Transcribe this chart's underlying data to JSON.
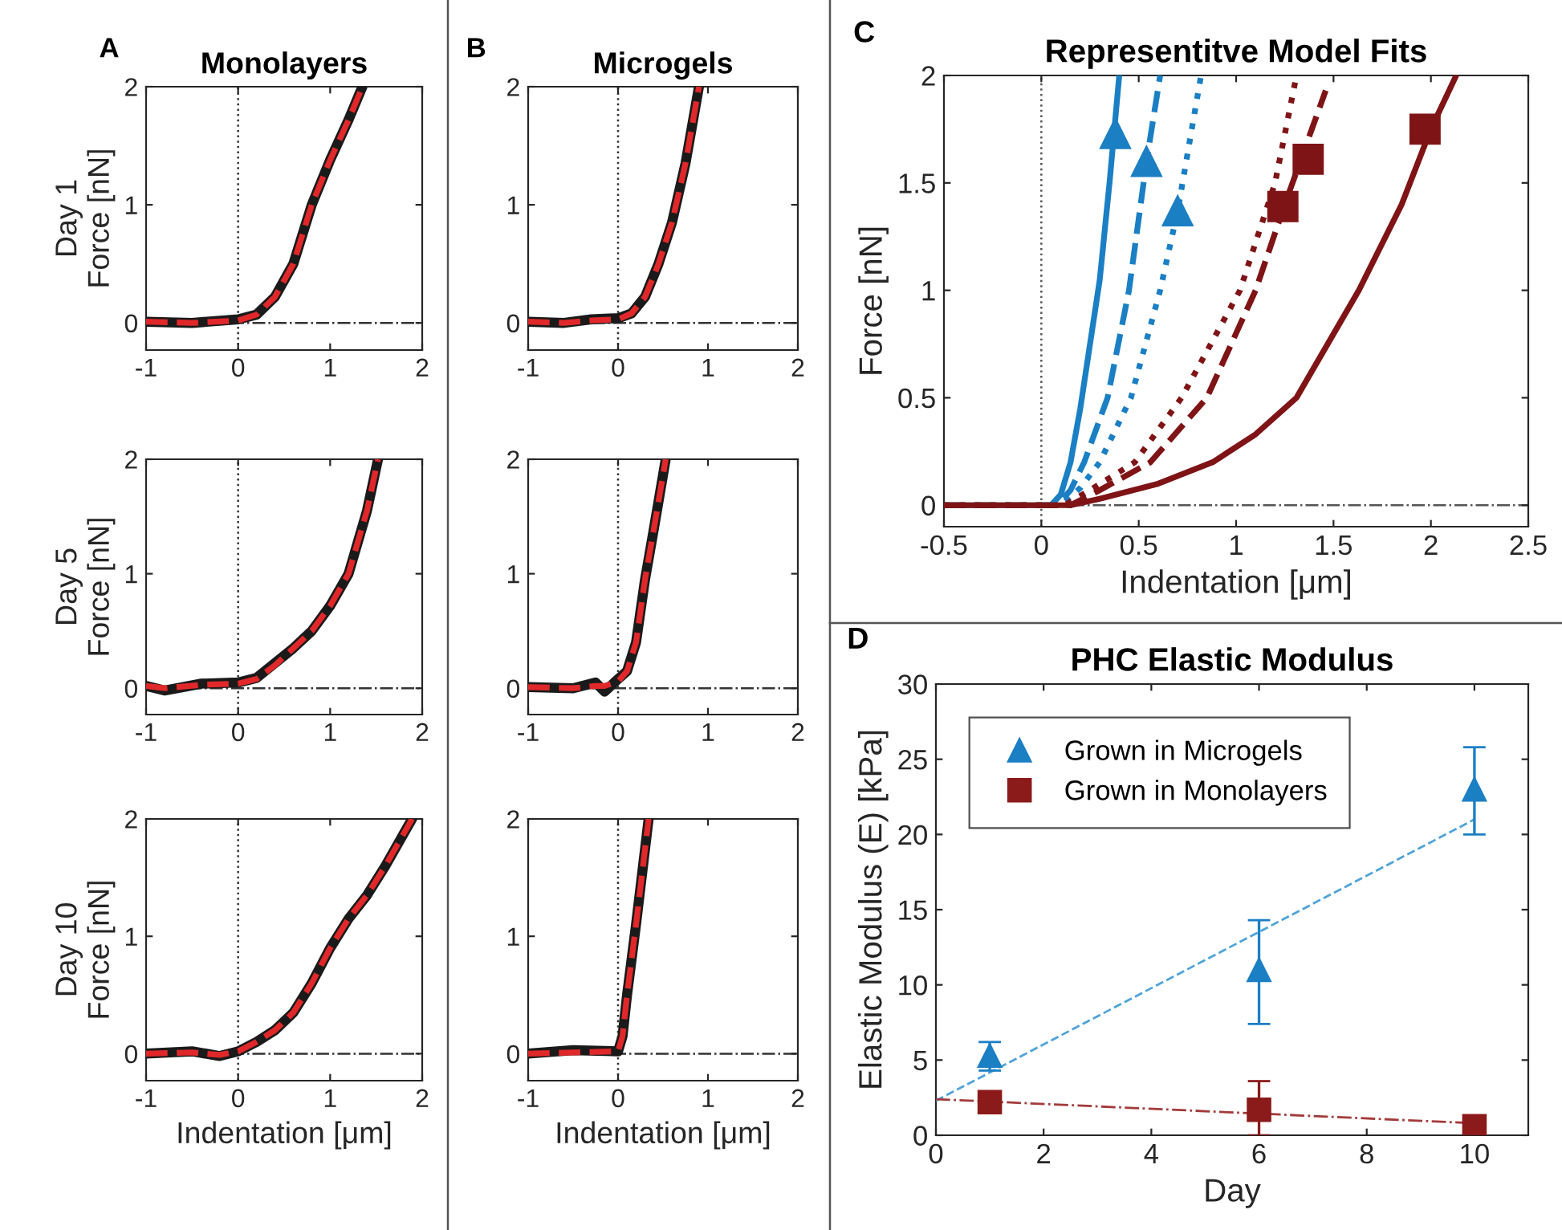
{
  "chart_data": [
    {
      "type": "line",
      "title": "Monolayers",
      "ylabel": "Day 1\nForce [nN]",
      "annotations": [
        "A"
      ],
      "xlim": [
        -1,
        2
      ],
      "ylim": [
        -0.23,
        2
      ],
      "xticks": [
        -1,
        0,
        1,
        2
      ],
      "yticks": [
        0,
        1,
        2
      ],
      "ref_lines": [
        {
          "axis": "x",
          "value": 0,
          "line_style": "dotted",
          "color": "#333333"
        },
        {
          "axis": "y",
          "value": 0,
          "line_style": "dashdot",
          "color": "#333333"
        }
      ],
      "series": [
        {
          "color": "#1a1a1a",
          "line_style": "solid",
          "x": [
            -1,
            -0.5,
            0,
            0.2,
            0.4,
            0.6,
            0.8,
            1.0,
            1.2,
            1.35
          ],
          "values": [
            0.01,
            0.0,
            0.03,
            0.07,
            0.22,
            0.5,
            1.0,
            1.38,
            1.72,
            2.0
          ]
        },
        {
          "color": "#e0282a",
          "line_style": "dashed",
          "x": [
            -1,
            -0.5,
            0,
            0.2,
            0.4,
            0.6,
            0.8,
            1.0,
            1.2,
            1.35
          ],
          "values": [
            0.01,
            0.0,
            0.02,
            0.07,
            0.22,
            0.5,
            1.0,
            1.38,
            1.72,
            2.0
          ]
        }
      ]
    },
    {
      "type": "line",
      "ylabel": "Day 5\nForce [nN]",
      "xlim": [
        -1,
        2
      ],
      "ylim": [
        -0.23,
        2
      ],
      "xticks": [
        -1,
        0,
        1,
        2
      ],
      "yticks": [
        0,
        1,
        2
      ],
      "ref_lines": [
        {
          "axis": "x",
          "value": 0,
          "line_style": "dotted",
          "color": "#333333"
        },
        {
          "axis": "y",
          "value": 0,
          "line_style": "dashdot",
          "color": "#333333"
        }
      ],
      "series": [
        {
          "color": "#1a1a1a",
          "line_style": "solid",
          "x": [
            -1,
            -0.8,
            -0.4,
            0,
            0.2,
            0.4,
            0.6,
            0.8,
            1.0,
            1.2,
            1.4,
            1.52
          ],
          "values": [
            0.02,
            -0.02,
            0.04,
            0.05,
            0.09,
            0.22,
            0.35,
            0.5,
            0.72,
            1.0,
            1.55,
            2.0
          ]
        },
        {
          "color": "#e0282a",
          "line_style": "dashed",
          "x": [
            -1,
            -0.8,
            -0.4,
            0,
            0.2,
            0.4,
            0.6,
            0.8,
            1.0,
            1.2,
            1.4,
            1.52
          ],
          "values": [
            0.02,
            0.0,
            0.03,
            0.04,
            0.08,
            0.2,
            0.35,
            0.5,
            0.72,
            1.0,
            1.55,
            2.0
          ]
        }
      ]
    },
    {
      "type": "line",
      "ylabel": "Day 10\nForce [nN]",
      "xlabel": "Indentation [μm]",
      "xlim": [
        -1,
        2
      ],
      "ylim": [
        -0.23,
        2
      ],
      "xticks": [
        -1,
        0,
        1,
        2
      ],
      "yticks": [
        0,
        1,
        2
      ],
      "ref_lines": [
        {
          "axis": "x",
          "value": 0,
          "line_style": "dotted",
          "color": "#333333"
        },
        {
          "axis": "y",
          "value": 0,
          "line_style": "dashdot",
          "color": "#333333"
        }
      ],
      "series": [
        {
          "color": "#1a1a1a",
          "line_style": "solid",
          "x": [
            -1,
            -0.5,
            -0.2,
            0,
            0.2,
            0.4,
            0.6,
            0.8,
            1.0,
            1.2,
            1.4,
            1.6,
            1.89
          ],
          "values": [
            0.0,
            0.02,
            -0.02,
            0.02,
            0.1,
            0.2,
            0.35,
            0.6,
            0.9,
            1.15,
            1.35,
            1.6,
            2.0
          ]
        },
        {
          "color": "#e0282a",
          "line_style": "dashed",
          "x": [
            -1,
            -0.5,
            -0.2,
            0,
            0.2,
            0.4,
            0.6,
            0.8,
            1.0,
            1.2,
            1.4,
            1.6,
            1.89
          ],
          "values": [
            0.0,
            0.01,
            -0.01,
            0.02,
            0.1,
            0.2,
            0.35,
            0.6,
            0.9,
            1.15,
            1.35,
            1.6,
            2.0
          ]
        }
      ]
    },
    {
      "type": "line",
      "title": "Microgels",
      "annotations": [
        "B"
      ],
      "xlim": [
        -1,
        2
      ],
      "ylim": [
        -0.23,
        2
      ],
      "xticks": [
        -1,
        0,
        1,
        2
      ],
      "yticks": [
        0,
        1,
        2
      ],
      "ref_lines": [
        {
          "axis": "x",
          "value": 0,
          "line_style": "dotted",
          "color": "#333333"
        },
        {
          "axis": "y",
          "value": 0,
          "line_style": "dashdot",
          "color": "#333333"
        }
      ],
      "series": [
        {
          "color": "#1a1a1a",
          "line_style": "solid",
          "x": [
            -1,
            -0.6,
            -0.3,
            0,
            0.15,
            0.3,
            0.45,
            0.6,
            0.75,
            0.9
          ],
          "values": [
            0.01,
            0.0,
            0.03,
            0.04,
            0.08,
            0.22,
            0.5,
            0.85,
            1.35,
            2.0
          ]
        },
        {
          "color": "#e0282a",
          "line_style": "dashed",
          "x": [
            -1,
            -0.6,
            -0.3,
            0,
            0.15,
            0.3,
            0.45,
            0.6,
            0.75,
            0.9
          ],
          "values": [
            0.01,
            0.0,
            0.02,
            0.03,
            0.08,
            0.22,
            0.5,
            0.85,
            1.35,
            2.0
          ]
        }
      ]
    },
    {
      "type": "line",
      "xlim": [
        -1,
        2
      ],
      "ylim": [
        -0.23,
        2
      ],
      "xticks": [
        -1,
        0,
        1,
        2
      ],
      "yticks": [
        0,
        1,
        2
      ],
      "ref_lines": [
        {
          "axis": "x",
          "value": 0,
          "line_style": "dotted",
          "color": "#333333"
        },
        {
          "axis": "y",
          "value": 0,
          "line_style": "dashdot",
          "color": "#333333"
        }
      ],
      "series": [
        {
          "color": "#1a1a1a",
          "line_style": "solid",
          "x": [
            -1,
            -0.5,
            -0.25,
            -0.15,
            0,
            0.1,
            0.2,
            0.3,
            0.4,
            0.53
          ],
          "values": [
            0.01,
            0.0,
            0.05,
            -0.03,
            0.08,
            0.15,
            0.4,
            0.95,
            1.4,
            2.0
          ]
        },
        {
          "color": "#e0282a",
          "line_style": "dashed",
          "x": [
            -1,
            -0.5,
            -0.25,
            -0.15,
            0,
            0.1,
            0.2,
            0.3,
            0.4,
            0.53
          ],
          "values": [
            0.01,
            0.0,
            0.02,
            0.02,
            0.06,
            0.15,
            0.4,
            0.95,
            1.4,
            2.0
          ]
        }
      ]
    },
    {
      "type": "line",
      "xlabel": "Indentation [μm]",
      "xlim": [
        -1,
        2
      ],
      "ylim": [
        -0.23,
        2
      ],
      "xticks": [
        -1,
        0,
        1,
        2
      ],
      "yticks": [
        0,
        1,
        2
      ],
      "ref_lines": [
        {
          "axis": "x",
          "value": 0,
          "line_style": "dotted",
          "color": "#333333"
        },
        {
          "axis": "y",
          "value": 0,
          "line_style": "dashdot",
          "color": "#333333"
        }
      ],
      "series": [
        {
          "color": "#1a1a1a",
          "line_style": "solid",
          "x": [
            -1,
            -0.5,
            0,
            0.05,
            0.1,
            0.2,
            0.34
          ],
          "values": [
            0.0,
            0.03,
            0.02,
            0.15,
            0.5,
            1.1,
            2.0
          ]
        },
        {
          "color": "#e0282a",
          "line_style": "dashed",
          "x": [
            -1,
            -0.5,
            0,
            0.05,
            0.1,
            0.2,
            0.34
          ],
          "values": [
            0.0,
            0.01,
            0.02,
            0.15,
            0.5,
            1.1,
            2.0
          ]
        }
      ]
    },
    {
      "type": "line",
      "title": "Representitve Model Fits",
      "xlabel": "Indentation [μm]",
      "ylabel": "Force [nN]",
      "annotations": [
        "C"
      ],
      "xlim": [
        -0.5,
        2.5
      ],
      "ylim": [
        -0.1,
        2
      ],
      "xticks": [
        -0.5,
        0,
        0.5,
        1,
        1.5,
        2,
        2.5
      ],
      "yticks": [
        0,
        0.5,
        1,
        1.5,
        2
      ],
      "ref_lines": [
        {
          "axis": "x",
          "value": 0,
          "line_style": "dotted",
          "color": "#555555"
        },
        {
          "axis": "y",
          "value": 0,
          "line_style": "dashdot",
          "color": "#555555"
        }
      ],
      "series": [
        {
          "color": "#1b7fc4",
          "line_style": "solid",
          "x": [
            -0.5,
            0.05,
            0.1,
            0.15,
            0.2,
            0.25,
            0.3,
            0.35,
            0.4
          ],
          "values": [
            0,
            0,
            0.05,
            0.2,
            0.45,
            0.75,
            1.05,
            1.5,
            2.0
          ]
        },
        {
          "color": "#1b7fc4",
          "line_style": "dashed",
          "x": [
            -0.5,
            0.08,
            0.15,
            0.22,
            0.34,
            0.45,
            0.54,
            0.61
          ],
          "values": [
            0,
            0,
            0.07,
            0.2,
            0.5,
            1.0,
            1.6,
            2.0
          ]
        },
        {
          "color": "#1b7fc4",
          "line_style": "dotted",
          "x": [
            -0.5,
            0.1,
            0.2,
            0.3,
            0.46,
            0.61,
            0.7,
            0.82
          ],
          "values": [
            0,
            0,
            0.08,
            0.2,
            0.5,
            1.0,
            1.37,
            2.0
          ]
        },
        {
          "color": "#7f1416",
          "line_style": "dotted",
          "x": [
            -0.5,
            0.12,
            0.25,
            0.48,
            0.72,
            1.02,
            1.2,
            1.31
          ],
          "values": [
            0,
            0,
            0.07,
            0.2,
            0.5,
            1.0,
            1.5,
            2.0
          ]
        },
        {
          "color": "#7f1416",
          "line_style": "dashed",
          "x": [
            -0.5,
            0.15,
            0.3,
            0.56,
            0.85,
            1.1,
            1.25,
            1.46
          ],
          "values": [
            0,
            0,
            0.07,
            0.2,
            0.5,
            1.0,
            1.4,
            1.93
          ]
        },
        {
          "color": "#7f1416",
          "line_style": "solid",
          "x": [
            -0.5,
            0.15,
            0.3,
            0.6,
            0.88,
            1.1,
            1.31,
            1.63,
            1.85,
            2.0,
            2.13
          ],
          "values": [
            0,
            0,
            0.03,
            0.1,
            0.2,
            0.33,
            0.5,
            1.0,
            1.4,
            1.75,
            2.0
          ]
        },
        {
          "type": "scatter",
          "marker": "triangle",
          "color": "#1b7fc4",
          "x": [
            0.38,
            0.54,
            0.7
          ],
          "values": [
            1.73,
            1.6,
            1.37
          ]
        },
        {
          "type": "scatter",
          "marker": "square",
          "color": "#7f1416",
          "x": [
            1.24,
            1.37,
            1.97
          ],
          "values": [
            1.39,
            1.61,
            1.75
          ]
        }
      ]
    },
    {
      "type": "scatter",
      "title": "PHC Elastic Modulus",
      "xlabel": "Day",
      "ylabel": "Elastic Modulus (E) [kPa]",
      "annotations": [
        "D"
      ],
      "xlim": [
        0,
        11
      ],
      "ylim": [
        0,
        30
      ],
      "xticks": [
        0,
        2,
        4,
        6,
        8,
        10
      ],
      "yticks": [
        0,
        5,
        10,
        15,
        20,
        25,
        30
      ],
      "legend": "top left",
      "series": [
        {
          "name": "Grown in Microgels",
          "marker": "triangle",
          "color": "#1b7fc4",
          "x": [
            1,
            6,
            10
          ],
          "values": [
            5.3,
            11,
            23
          ],
          "errors": [
            [
              4.3,
              6.2
            ],
            [
              7.4,
              14.3
            ],
            [
              20,
              25.8
            ]
          ]
        },
        {
          "name": "Grown in Monolayers",
          "marker": "square",
          "color": "#8b1a1a",
          "x": [
            1,
            6,
            10
          ],
          "values": [
            2.2,
            1.7,
            0.6
          ],
          "errors": [
            null,
            [
              0,
              3.6
            ],
            null
          ]
        },
        {
          "type": "line",
          "line_style": "dashed",
          "color": "#4fa3d8",
          "x": [
            0,
            10
          ],
          "values": [
            2.3,
            21
          ]
        },
        {
          "type": "line",
          "line_style": "dashdot",
          "color": "#a33a3a",
          "x": [
            0,
            10
          ],
          "values": [
            2.4,
            0.8
          ]
        }
      ]
    }
  ]
}
